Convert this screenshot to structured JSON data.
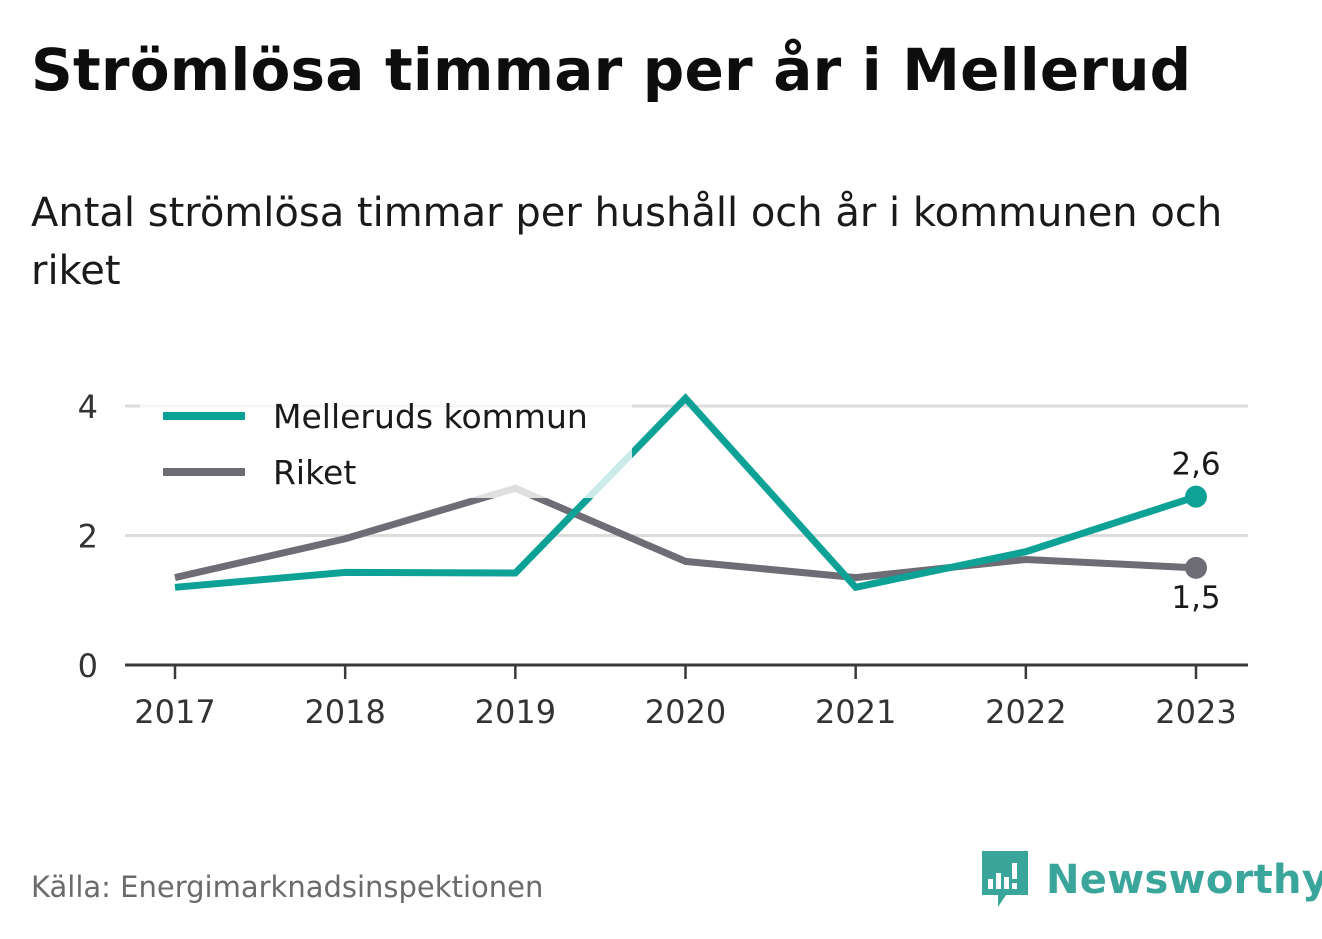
{
  "header": {
    "title": "Strömlösa timmar per år i Mellerud",
    "subtitle": "Antal strömlösa timmar per hushåll och år i kommunen och riket"
  },
  "chart_data": {
    "type": "line",
    "title": "Strömlösa timmar per år i Mellerud",
    "subtitle": "Antal strömlösa timmar per hushåll och år i kommunen och riket",
    "xlabel": "",
    "ylabel": "",
    "x": [
      "2017",
      "2018",
      "2019",
      "2020",
      "2021",
      "2022",
      "2023"
    ],
    "ylim": [
      0,
      4
    ],
    "yticks": [
      0,
      2,
      4
    ],
    "ytick_labels": [
      "0",
      "2",
      "4"
    ],
    "grid": true,
    "legend_position": "top-left",
    "series": [
      {
        "name": "Melleruds kommun",
        "color": "#0ea297",
        "values": [
          1.2,
          1.43,
          1.42,
          4.12,
          1.2,
          1.75,
          2.6
        ],
        "end_label": "2,6"
      },
      {
        "name": "Riket",
        "color": "#6e6d75",
        "values": [
          1.35,
          1.95,
          2.73,
          1.6,
          1.35,
          1.63,
          1.5
        ],
        "end_label": "1,5"
      }
    ]
  },
  "footer": {
    "source": "Källa: Energimarknadsinspektionen",
    "brand": "Newsworthy",
    "brand_color": "#3aa59a",
    "brand_icon": "bar-chart-speech-bubble-icon"
  }
}
